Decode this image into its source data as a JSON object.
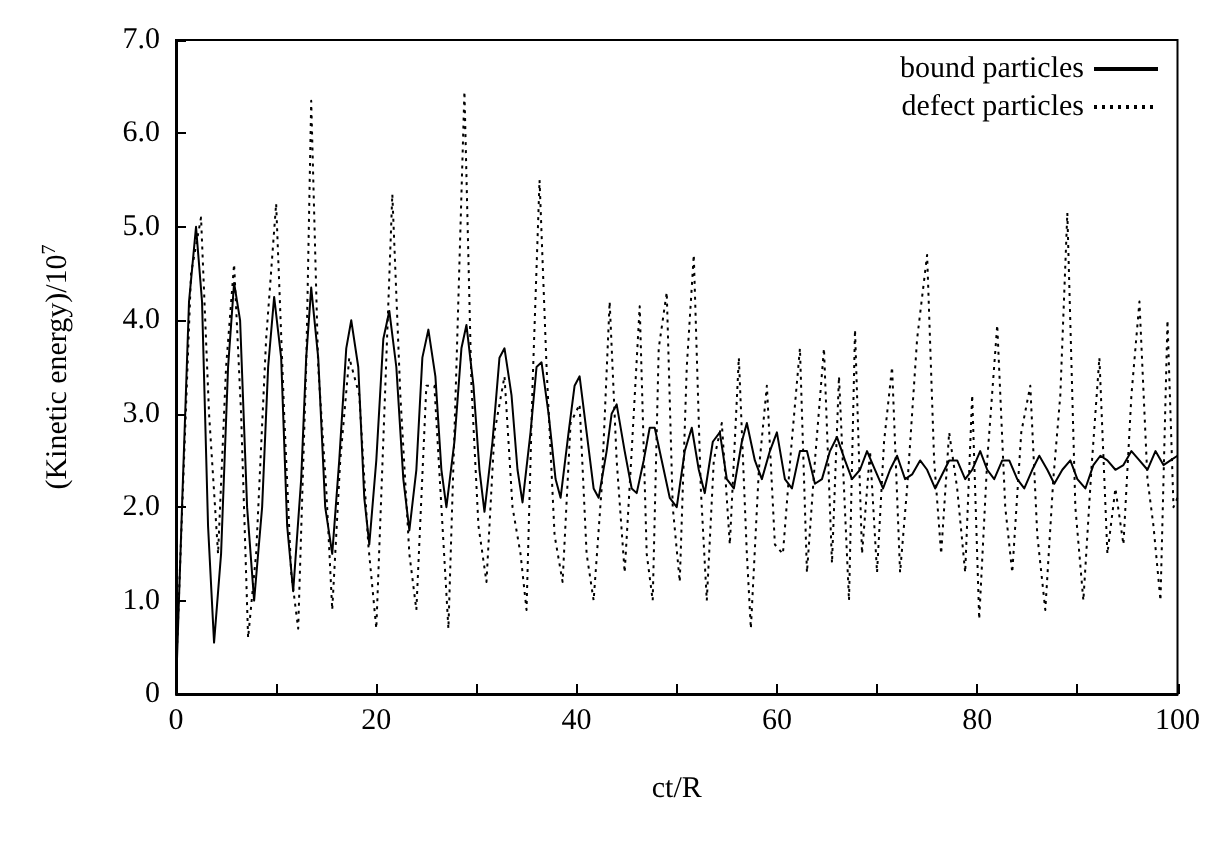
{
  "chart_data": {
    "type": "line",
    "xlabel": "ct/R",
    "ylabel": "(Kinetic energy)/10$^{7}$",
    "xlim": [
      0,
      100
    ],
    "ylim": [
      0,
      7
    ],
    "xticks": [
      0,
      {
        "value": 10,
        "label": null
      },
      20,
      {
        "value": 30,
        "label": null
      },
      40,
      {
        "value": 50,
        "label": null
      },
      60,
      {
        "value": 70,
        "label": null
      },
      80,
      {
        "value": 90,
        "label": null
      },
      100
    ],
    "yticks": [
      0,
      {
        "value": 1,
        "label": "1.0"
      },
      {
        "value": 2,
        "label": "2.0"
      },
      {
        "value": 3,
        "label": "3.0"
      },
      {
        "value": 4,
        "label": "4.0"
      },
      {
        "value": 5,
        "label": "5.0"
      },
      {
        "value": 6,
        "label": "6.0"
      },
      {
        "value": 7,
        "label": "7.0"
      }
    ],
    "grid": false,
    "legend": "top right",
    "marker": "none",
    "series": [
      {
        "name": "bound particles",
        "color": "#000000",
        "line_style": "solid",
        "x": [
          0,
          0.6,
          1.3,
          2,
          2.6,
          3.2,
          3.8,
          4.5,
          5.2,
          5.8,
          6.4,
          7.1,
          7.8,
          8.6,
          9.2,
          9.8,
          10.5,
          11.1,
          11.7,
          12.5,
          13,
          13.5,
          14.2,
          14.9,
          15.6,
          16.3,
          17,
          17.5,
          18.2,
          18.8,
          19.3,
          20,
          20.7,
          21.3,
          22,
          22.7,
          23.3,
          24,
          24.6,
          25.2,
          25.9,
          26.5,
          27,
          27.8,
          28.5,
          29,
          29.7,
          30.3,
          30.8,
          31.6,
          32.3,
          32.8,
          33.5,
          34.1,
          34.6,
          35.4,
          36,
          36.5,
          37.2,
          37.9,
          38.4,
          39.2,
          39.8,
          40.3,
          41,
          41.7,
          42.2,
          43,
          43.5,
          44,
          44.8,
          45.5,
          46,
          46.7,
          47.3,
          47.8,
          48.5,
          49.3,
          50,
          50.8,
          51.5,
          52.2,
          52.8,
          53.6,
          54.3,
          55,
          55.7,
          56.5,
          57,
          57.8,
          58.5,
          59.3,
          60,
          60.8,
          61.5,
          62.3,
          63,
          63.8,
          64.5,
          65.3,
          66,
          66.8,
          67.5,
          68.3,
          69,
          69.8,
          70.6,
          71.3,
          72,
          72.8,
          73.5,
          74.3,
          75,
          75.8,
          76.5,
          77.2,
          78,
          78.8,
          79.5,
          80.3,
          81,
          81.7,
          82.5,
          83.2,
          84,
          84.7,
          85.5,
          86.2,
          87,
          87.7,
          88.5,
          89.3,
          90,
          90.8,
          91.6,
          92.3,
          93,
          93.8,
          94.6,
          95.4,
          96.2,
          97,
          97.8,
          98.6,
          99.3,
          100
        ],
        "values": [
          0.05,
          2.0,
          4.2,
          5.0,
          4.2,
          1.8,
          0.55,
          1.5,
          3.5,
          4.4,
          4.0,
          2.0,
          1.0,
          2.0,
          3.5,
          4.25,
          3.6,
          1.8,
          1.1,
          2.3,
          3.6,
          4.35,
          3.6,
          2.0,
          1.5,
          2.5,
          3.7,
          4.0,
          3.5,
          2.1,
          1.6,
          2.5,
          3.8,
          4.1,
          3.5,
          2.3,
          1.75,
          2.4,
          3.6,
          3.9,
          3.4,
          2.4,
          2.0,
          2.7,
          3.7,
          3.95,
          3.3,
          2.4,
          1.95,
          2.7,
          3.6,
          3.7,
          3.2,
          2.4,
          2.05,
          2.8,
          3.5,
          3.55,
          3.0,
          2.3,
          2.1,
          2.8,
          3.3,
          3.4,
          2.8,
          2.2,
          2.1,
          2.6,
          3.0,
          3.1,
          2.6,
          2.2,
          2.15,
          2.5,
          2.85,
          2.85,
          2.5,
          2.1,
          2.0,
          2.6,
          2.85,
          2.4,
          2.15,
          2.7,
          2.8,
          2.3,
          2.2,
          2.7,
          2.9,
          2.5,
          2.3,
          2.6,
          2.8,
          2.3,
          2.2,
          2.6,
          2.6,
          2.25,
          2.3,
          2.6,
          2.75,
          2.5,
          2.3,
          2.4,
          2.6,
          2.4,
          2.2,
          2.4,
          2.55,
          2.3,
          2.35,
          2.5,
          2.4,
          2.2,
          2.35,
          2.5,
          2.5,
          2.3,
          2.4,
          2.6,
          2.4,
          2.3,
          2.5,
          2.5,
          2.3,
          2.2,
          2.4,
          2.55,
          2.4,
          2.25,
          2.4,
          2.5,
          2.3,
          2.2,
          2.45,
          2.55,
          2.5,
          2.4,
          2.45,
          2.6,
          2.5,
          2.4,
          2.6,
          2.45,
          2.5,
          2.55
        ]
      },
      {
        "name": "defect particles",
        "color": "#000000",
        "line_style": "dotted",
        "x": [
          0,
          0.8,
          1.5,
          2.5,
          3.3,
          4.2,
          5,
          5.8,
          6.5,
          7.2,
          8,
          9,
          10,
          10.8,
          11.5,
          12.2,
          13,
          13.5,
          14.2,
          15,
          15.6,
          16.4,
          17.3,
          18.3,
          19.2,
          20,
          20.8,
          21.6,
          22.4,
          23.3,
          24,
          25,
          25.8,
          26.5,
          27.2,
          28,
          28.8,
          29.5,
          30.2,
          31,
          31.8,
          32.8,
          33.6,
          34.4,
          35,
          35.6,
          36.3,
          37,
          37.8,
          38.6,
          39.4,
          40.3,
          41,
          41.7,
          42.5,
          43.3,
          44,
          44.8,
          45.5,
          46.3,
          47,
          47.6,
          48.2,
          49,
          49.6,
          50.3,
          51,
          51.7,
          52.4,
          53,
          53.7,
          54.5,
          55.3,
          56.2,
          57,
          57.4,
          58.2,
          59,
          59.8,
          60.6,
          61.4,
          62.3,
          63,
          63.8,
          64.7,
          65.5,
          66.2,
          67.2,
          67.8,
          68.5,
          69.3,
          70,
          70.7,
          71.5,
          72.3,
          73,
          74,
          75,
          75.7,
          76.4,
          77.2,
          78,
          78.8,
          79.5,
          80.2,
          81,
          82,
          82.8,
          83.5,
          84.4,
          85.3,
          86,
          86.8,
          87.6,
          88.3,
          89,
          89.8,
          90.6,
          91.4,
          92.2,
          93,
          93.8,
          94.6,
          95.4,
          96.2,
          97,
          97.6,
          98.3,
          99,
          99.6,
          100
        ],
        "values": [
          0.2,
          2.5,
          4.5,
          5.1,
          3.0,
          1.5,
          3.5,
          4.6,
          3.0,
          0.6,
          1.5,
          3.8,
          5.25,
          3.0,
          1.3,
          0.7,
          3.5,
          6.35,
          3.5,
          2.2,
          0.9,
          2.5,
          3.6,
          3.2,
          1.6,
          0.7,
          3.0,
          5.35,
          3.2,
          1.5,
          0.9,
          3.3,
          3.3,
          2.0,
          0.7,
          3.5,
          6.45,
          3.3,
          1.8,
          1.2,
          2.8,
          3.4,
          2.0,
          1.5,
          0.9,
          3.3,
          5.5,
          3.5,
          1.7,
          1.2,
          2.9,
          3.1,
          1.5,
          1.0,
          2.2,
          4.2,
          2.5,
          1.3,
          2.6,
          4.15,
          1.5,
          1.0,
          3.7,
          4.3,
          2.0,
          1.2,
          3.5,
          4.7,
          2.2,
          1.0,
          2.5,
          2.9,
          1.6,
          3.6,
          1.5,
          0.7,
          2.4,
          3.3,
          1.6,
          1.5,
          2.6,
          3.7,
          1.3,
          2.5,
          3.7,
          1.4,
          3.4,
          1.0,
          3.9,
          1.5,
          2.6,
          1.3,
          2.7,
          3.5,
          1.3,
          2.2,
          3.8,
          4.7,
          2.5,
          1.5,
          2.8,
          2.2,
          1.3,
          3.2,
          0.8,
          2.5,
          3.95,
          2.0,
          1.3,
          2.8,
          3.3,
          1.7,
          0.9,
          2.3,
          3.2,
          5.15,
          2.0,
          1.0,
          2.4,
          3.6,
          1.5,
          2.2,
          1.6,
          3.2,
          4.2,
          2.3,
          1.8,
          1.0,
          4.0,
          2.0,
          2.1
        ]
      }
    ]
  }
}
